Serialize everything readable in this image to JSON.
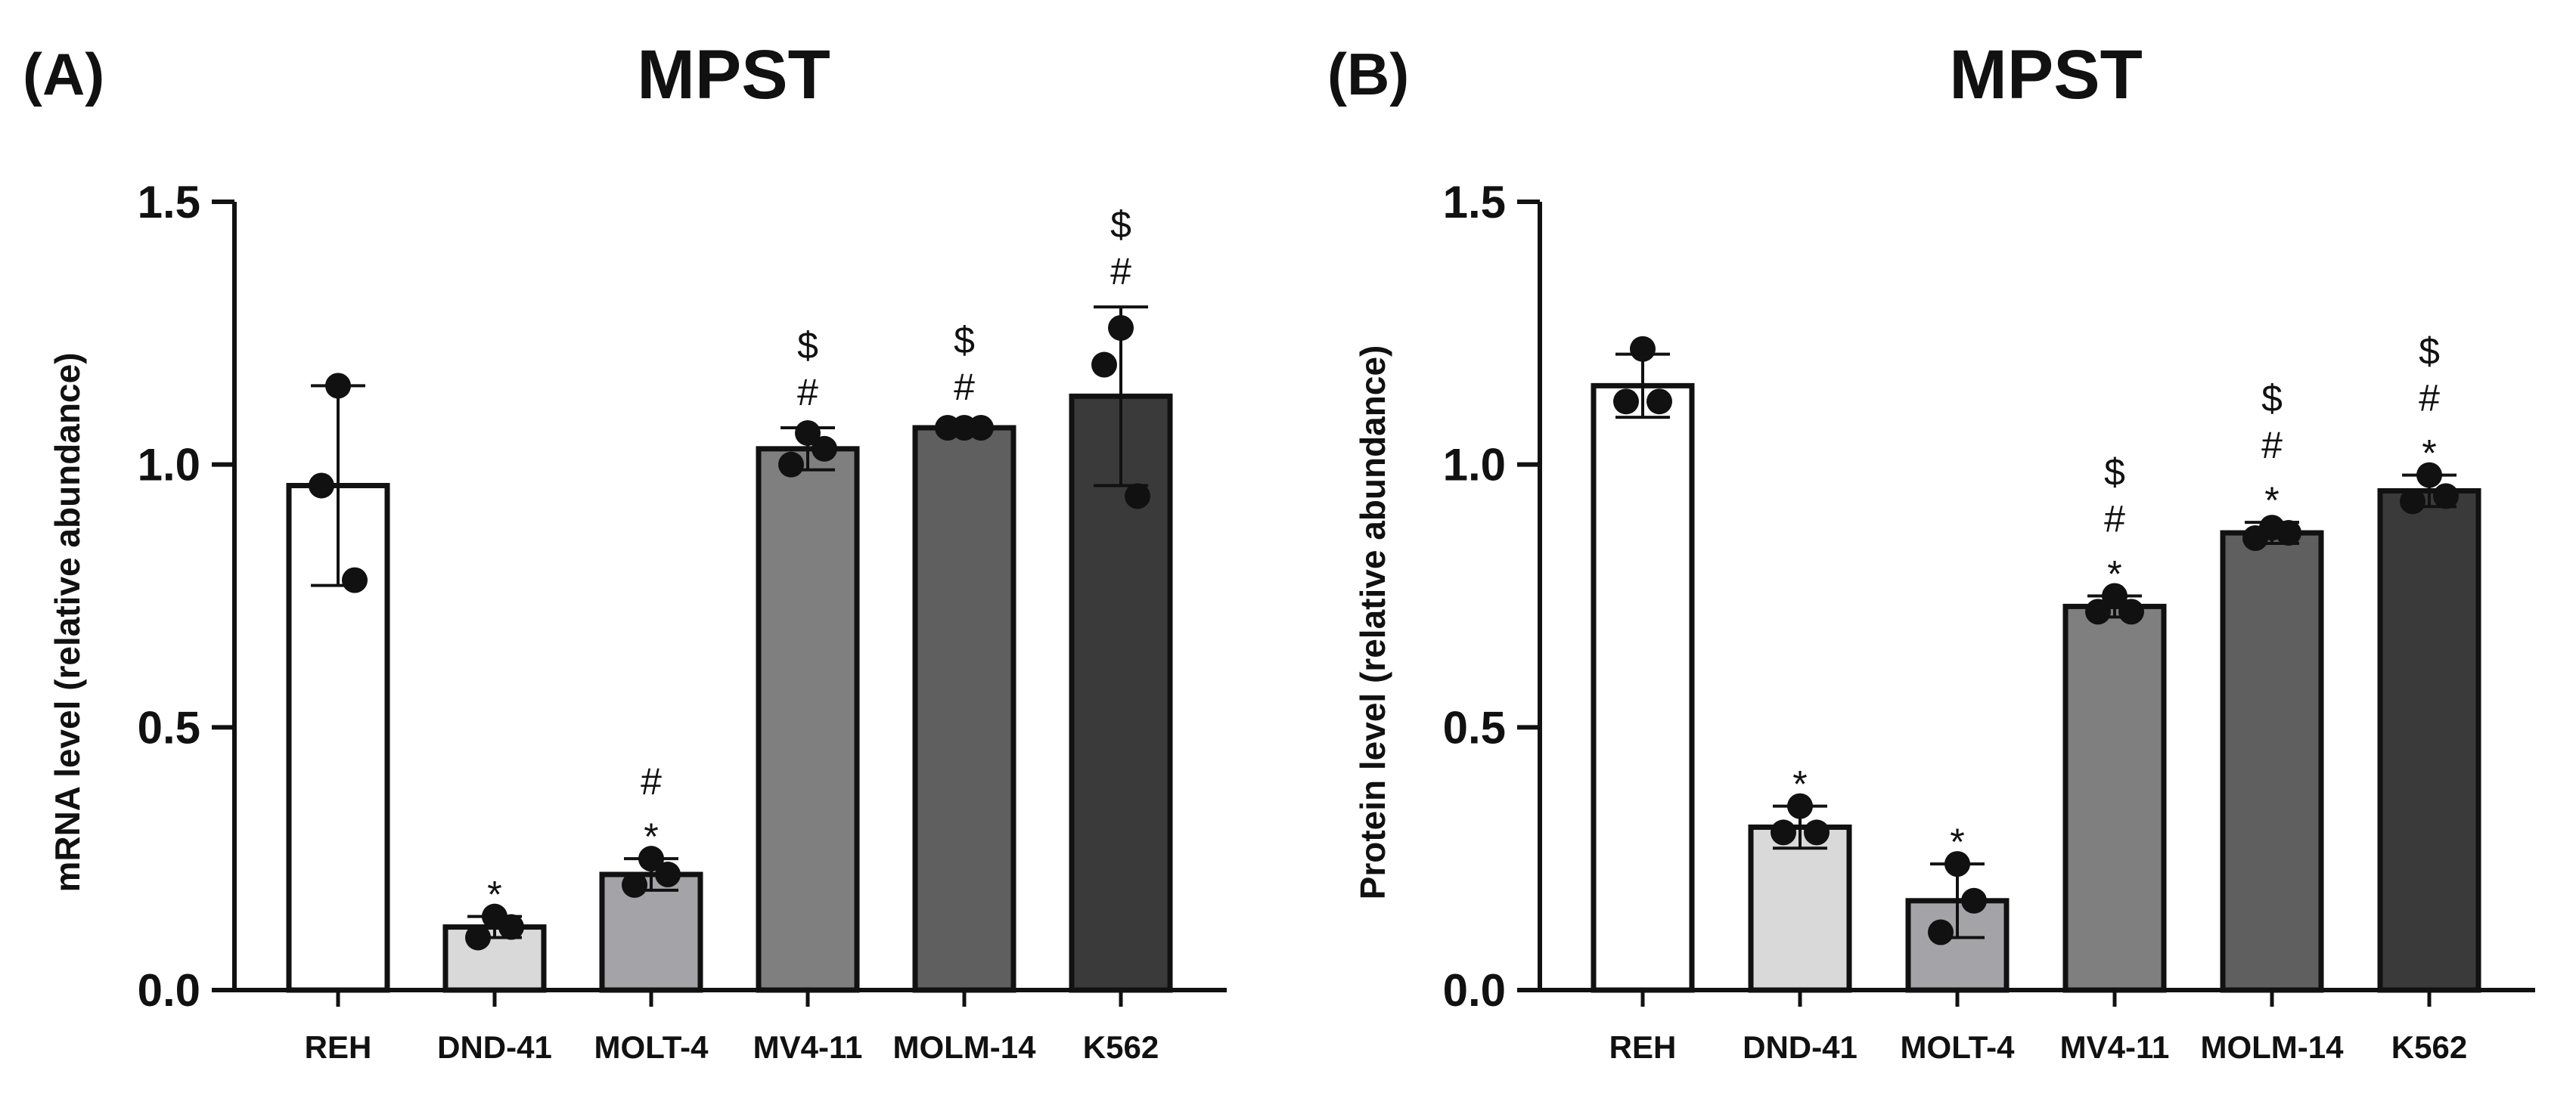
{
  "chart_data": [
    {
      "type": "bar",
      "panel": "(A)",
      "title": "MPST",
      "xlabel": "",
      "ylabel": "mRNA level (relative abundance)",
      "ylim": [
        0,
        1.5
      ],
      "yticks": [
        0.0,
        0.5,
        1.0,
        1.5
      ],
      "ytick_labels": [
        "0.0",
        "0.5",
        "1.0",
        "1.5"
      ],
      "categories": [
        "REH",
        "DND-41",
        "MOLT-4",
        "MV4-11",
        "MOLM-14",
        "K562"
      ],
      "values": [
        0.96,
        0.12,
        0.22,
        1.03,
        1.07,
        1.13
      ],
      "errors": [
        0.19,
        0.02,
        0.03,
        0.04,
        0.01,
        0.17
      ],
      "points": [
        [
          1.15,
          0.96,
          0.78
        ],
        [
          0.14,
          0.1,
          0.12
        ],
        [
          0.25,
          0.2,
          0.22
        ],
        [
          1.06,
          1.0,
          1.03
        ],
        [
          1.07,
          1.07,
          1.07
        ],
        [
          1.26,
          1.19,
          0.94
        ]
      ],
      "bar_colors": [
        "#ffffff",
        "#d9d9d9",
        "#a4a4a8",
        "#7f7f7f",
        "#5f5f5f",
        "#3a3a3a"
      ],
      "significance": [
        [],
        [
          "*"
        ],
        [
          "*",
          "#"
        ],
        [
          "#",
          "$"
        ],
        [
          "#",
          "$"
        ],
        [
          "#",
          "$"
        ]
      ]
    },
    {
      "type": "bar",
      "panel": "(B)",
      "title": "MPST",
      "xlabel": "",
      "ylabel": "Protein level (relative abundance)",
      "ylim": [
        0,
        1.5
      ],
      "yticks": [
        0.0,
        0.5,
        1.0,
        1.5
      ],
      "ytick_labels": [
        "0.0",
        "0.5",
        "1.0",
        "1.5"
      ],
      "categories": [
        "REH",
        "DND-41",
        "MOLT-4",
        "MV4-11",
        "MOLM-14",
        "K562"
      ],
      "values": [
        1.15,
        0.31,
        0.17,
        0.73,
        0.87,
        0.95
      ],
      "errors": [
        0.06,
        0.04,
        0.07,
        0.02,
        0.02,
        0.03
      ],
      "points": [
        [
          1.22,
          1.12,
          1.12
        ],
        [
          0.35,
          0.3,
          0.3
        ],
        [
          0.24,
          0.11,
          0.17
        ],
        [
          0.75,
          0.72,
          0.72
        ],
        [
          0.88,
          0.86,
          0.87
        ],
        [
          0.98,
          0.93,
          0.94
        ]
      ],
      "bar_colors": [
        "#ffffff",
        "#d9d9d9",
        "#a4a4a8",
        "#7f7f7f",
        "#5f5f5f",
        "#3a3a3a"
      ],
      "significance": [
        [],
        [
          "*"
        ],
        [
          "*"
        ],
        [
          "*",
          "#",
          "$"
        ],
        [
          "*",
          "#",
          "$"
        ],
        [
          "*",
          "#",
          "$"
        ]
      ]
    }
  ]
}
